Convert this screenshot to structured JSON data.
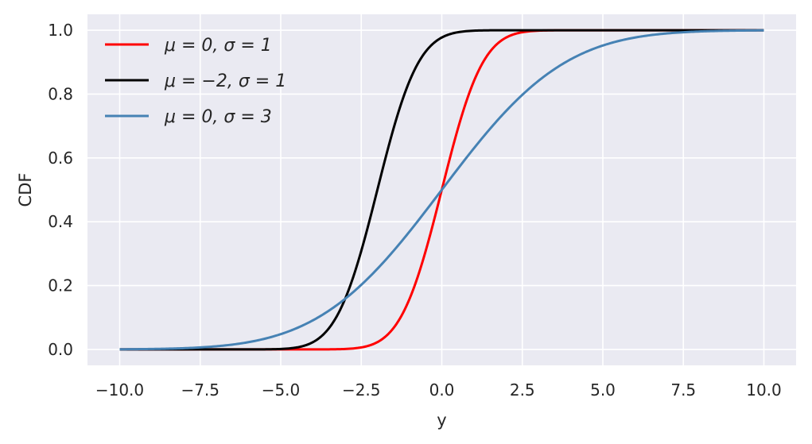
{
  "chart_data": {
    "type": "line",
    "title": "",
    "xlabel": "y",
    "ylabel": "CDF",
    "xlim": [
      -11.0,
      11.0
    ],
    "ylim": [
      -0.05,
      1.05
    ],
    "xticks": [
      -10.0,
      -7.5,
      -5.0,
      -2.5,
      0.0,
      2.5,
      5.0,
      7.5,
      10.0
    ],
    "xtick_labels": [
      "−10.0",
      "−7.5",
      "−5.0",
      "−2.5",
      "0.0",
      "2.5",
      "5.0",
      "7.5",
      "10.0"
    ],
    "yticks": [
      0.0,
      0.2,
      0.4,
      0.6,
      0.8,
      1.0
    ],
    "ytick_labels": [
      "0.0",
      "0.2",
      "0.4",
      "0.6",
      "0.8",
      "1.0"
    ],
    "grid": true,
    "background": "#EAEAF2",
    "legend_position": "upper-left",
    "x_range": [
      -10,
      10
    ],
    "series": [
      {
        "name": "μ = 0, σ = 1",
        "color": "#FF0000",
        "mu": 0,
        "sigma": 1,
        "x": [
          -10,
          -4,
          -3,
          -2,
          -1,
          0,
          1,
          2,
          3,
          4,
          10
        ],
        "values": [
          0.0,
          0.0,
          0.001,
          0.023,
          0.159,
          0.5,
          0.841,
          0.977,
          0.999,
          1.0,
          1.0
        ]
      },
      {
        "name": "μ = −2, σ = 1",
        "color": "#000000",
        "mu": -2,
        "sigma": 1,
        "x": [
          -10,
          -6,
          -5,
          -4,
          -3,
          -2,
          -1,
          0,
          1,
          2,
          10
        ],
        "values": [
          0.0,
          0.0,
          0.001,
          0.023,
          0.159,
          0.5,
          0.841,
          0.977,
          0.999,
          1.0,
          1.0
        ]
      },
      {
        "name": "μ = 0, σ = 3",
        "color": "#4682B4",
        "mu": 0,
        "sigma": 3,
        "x": [
          -10,
          -7.5,
          -5,
          -2.5,
          0,
          2.5,
          5,
          7.5,
          10
        ],
        "values": [
          0.0,
          0.006,
          0.048,
          0.202,
          0.5,
          0.798,
          0.952,
          0.994,
          1.0
        ]
      }
    ]
  }
}
